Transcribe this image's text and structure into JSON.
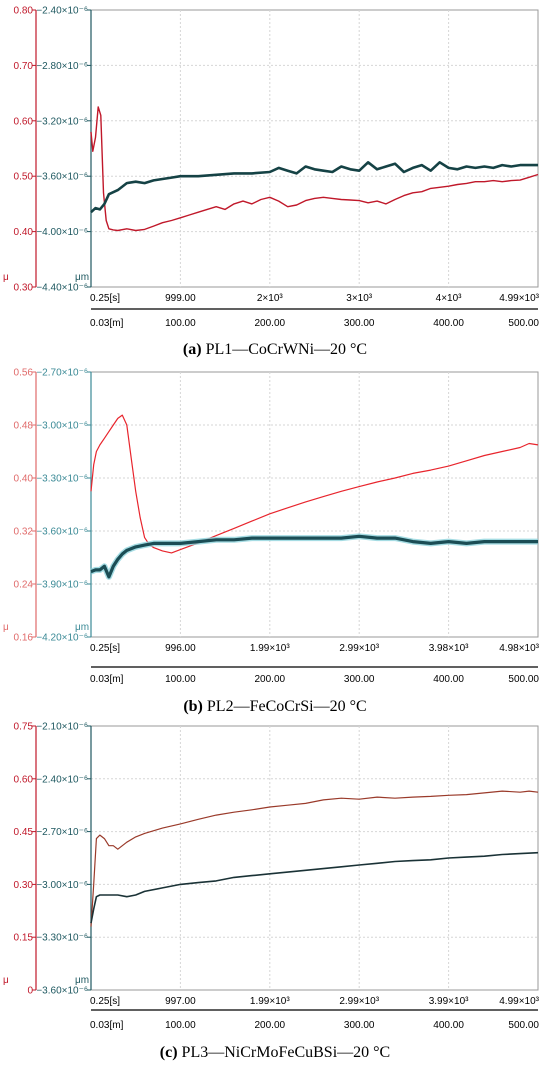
{
  "chart_data": [
    {
      "type": "line",
      "caption_letter": "(a)",
      "caption_rest": " PL1—CoCrWNi—20 °C",
      "mu_axis": {
        "unit": "μ",
        "ticks": [
          "0.80",
          "0.70",
          "0.60",
          "0.50",
          "0.40",
          "0.30"
        ],
        "range": [
          0.3,
          0.8
        ],
        "color": "#c0182a"
      },
      "depth_axis": {
        "unit": "μm",
        "ticks": [
          "−2.40×10⁻⁶",
          "−2.80×10⁻⁶",
          "−3.20×10⁻⁶",
          "−3.60×10⁻⁶",
          "−4.00×10⁻⁶",
          "−4.40×10⁻⁶"
        ],
        "range": [
          -4.4e-06,
          -2.4e-06
        ],
        "color": "#1e5860"
      },
      "time_ticks": [
        "0.25[s]",
        "999.00",
        "2×10³",
        "3×10³",
        "4×10³",
        "4.99×10³"
      ],
      "distance_ticks": [
        "0.03[m]",
        "100.00",
        "200.00",
        "300.00",
        "400.00",
        "500.00"
      ],
      "x_range": [
        0,
        500
      ],
      "series": [
        {
          "color": "#c0182a",
          "width": 1.4,
          "x": [
            0,
            2,
            5,
            8,
            11,
            14,
            17,
            20,
            25,
            30,
            40,
            50,
            60,
            70,
            80,
            90,
            100,
            110,
            120,
            130,
            140,
            150,
            160,
            170,
            180,
            190,
            200,
            210,
            220,
            230,
            240,
            250,
            260,
            270,
            280,
            290,
            300,
            310,
            320,
            330,
            340,
            350,
            360,
            370,
            380,
            390,
            400,
            410,
            420,
            430,
            440,
            450,
            460,
            470,
            480,
            490,
            500
          ],
          "y": [
            0.58,
            0.545,
            0.57,
            0.625,
            0.61,
            0.47,
            0.42,
            0.405,
            0.403,
            0.402,
            0.405,
            0.402,
            0.404,
            0.41,
            0.416,
            0.42,
            0.425,
            0.43,
            0.435,
            0.44,
            0.445,
            0.44,
            0.45,
            0.455,
            0.45,
            0.458,
            0.462,
            0.455,
            0.445,
            0.448,
            0.456,
            0.46,
            0.462,
            0.46,
            0.458,
            0.457,
            0.456,
            0.452,
            0.455,
            0.45,
            0.458,
            0.465,
            0.47,
            0.472,
            0.478,
            0.48,
            0.482,
            0.485,
            0.487,
            0.49,
            0.49,
            0.492,
            0.49,
            0.492,
            0.493,
            0.498,
            0.503
          ]
        },
        {
          "color": "#154245",
          "width": 2.6,
          "x": [
            0,
            5,
            10,
            15,
            20,
            30,
            40,
            50,
            60,
            70,
            80,
            90,
            100,
            120,
            140,
            160,
            180,
            200,
            210,
            220,
            230,
            240,
            250,
            260,
            270,
            280,
            290,
            300,
            310,
            320,
            330,
            340,
            350,
            360,
            370,
            380,
            390,
            400,
            410,
            420,
            430,
            440,
            450,
            460,
            470,
            480,
            490,
            500
          ],
          "y": [
            -3.86e-06,
            -3.83e-06,
            -3.84e-06,
            -3.8e-06,
            -3.73e-06,
            -3.7e-06,
            -3.65e-06,
            -3.64e-06,
            -3.65e-06,
            -3.63e-06,
            -3.62e-06,
            -3.61e-06,
            -3.6e-06,
            -3.6e-06,
            -3.59e-06,
            -3.58e-06,
            -3.58e-06,
            -3.57e-06,
            -3.54e-06,
            -3.56e-06,
            -3.58e-06,
            -3.53e-06,
            -3.55e-06,
            -3.56e-06,
            -3.57e-06,
            -3.53e-06,
            -3.55e-06,
            -3.56e-06,
            -3.5e-06,
            -3.55e-06,
            -3.53e-06,
            -3.51e-06,
            -3.57e-06,
            -3.54e-06,
            -3.52e-06,
            -3.56e-06,
            -3.5e-06,
            -3.54e-06,
            -3.55e-06,
            -3.53e-06,
            -3.54e-06,
            -3.53e-06,
            -3.54e-06,
            -3.52e-06,
            -3.53e-06,
            -3.52e-06,
            -3.52e-06,
            -3.52e-06
          ]
        }
      ]
    },
    {
      "type": "line",
      "caption_letter": "(b)",
      "caption_rest": " PL2—FeCoCrSi—20 °C",
      "mu_axis": {
        "unit": "μ",
        "ticks": [
          "0.56",
          "0.48",
          "0.40",
          "0.32",
          "0.24",
          "0.16"
        ],
        "range": [
          0.16,
          0.56
        ],
        "color": "#e06a6a"
      },
      "depth_axis": {
        "unit": "μm",
        "ticks": [
          "−2.70×10⁻⁶",
          "−3.00×10⁻⁶",
          "−3.30×10⁻⁶",
          "−3.60×10⁻⁶",
          "−3.90×10⁻⁶",
          "−4.20×10⁻⁶"
        ],
        "range": [
          -4.2e-06,
          -2.7e-06
        ],
        "color": "#3b8a96"
      },
      "time_ticks": [
        "0.25[s]",
        "996.00",
        "1.99×10³",
        "2.99×10³",
        "3.98×10³",
        "4.98×10³"
      ],
      "distance_ticks": [
        "0.03[m]",
        "100.00",
        "200.00",
        "300.00",
        "400.00",
        "500.00"
      ],
      "x_range": [
        0,
        500
      ],
      "series": [
        {
          "color": "#e8252d",
          "width": 1.2,
          "x": [
            0,
            3,
            6,
            10,
            15,
            20,
            25,
            30,
            35,
            40,
            45,
            50,
            55,
            60,
            65,
            70,
            80,
            90,
            100,
            120,
            140,
            160,
            180,
            200,
            220,
            240,
            260,
            280,
            300,
            320,
            340,
            360,
            380,
            400,
            420,
            440,
            460,
            480,
            490,
            500
          ],
          "y": [
            0.38,
            0.42,
            0.44,
            0.45,
            0.46,
            0.47,
            0.48,
            0.49,
            0.495,
            0.48,
            0.43,
            0.38,
            0.34,
            0.31,
            0.3,
            0.295,
            0.29,
            0.287,
            0.292,
            0.302,
            0.313,
            0.324,
            0.335,
            0.346,
            0.355,
            0.364,
            0.372,
            0.38,
            0.387,
            0.394,
            0.4,
            0.407,
            0.412,
            0.418,
            0.426,
            0.434,
            0.44,
            0.446,
            0.452,
            0.45
          ]
        },
        {
          "color": "#1b4d55",
          "width": 3.2,
          "x": [
            0,
            5,
            10,
            15,
            20,
            25,
            30,
            35,
            40,
            50,
            60,
            70,
            80,
            90,
            100,
            120,
            140,
            160,
            180,
            200,
            220,
            240,
            260,
            280,
            300,
            320,
            340,
            360,
            380,
            400,
            420,
            440,
            460,
            480,
            500
          ],
          "y": [
            -3.83e-06,
            -3.82e-06,
            -3.82e-06,
            -3.8e-06,
            -3.86e-06,
            -3.8e-06,
            -3.76e-06,
            -3.73e-06,
            -3.71e-06,
            -3.69e-06,
            -3.68e-06,
            -3.67e-06,
            -3.67e-06,
            -3.67e-06,
            -3.67e-06,
            -3.66e-06,
            -3.65e-06,
            -3.65e-06,
            -3.64e-06,
            -3.64e-06,
            -3.64e-06,
            -3.64e-06,
            -3.64e-06,
            -3.64e-06,
            -3.63e-06,
            -3.64e-06,
            -3.64e-06,
            -3.66e-06,
            -3.67e-06,
            -3.66e-06,
            -3.67e-06,
            -3.66e-06,
            -3.66e-06,
            -3.66e-06,
            -3.66e-06
          ]
        }
      ]
    },
    {
      "type": "line",
      "caption_letter": "(c)",
      "caption_rest": " PL3—NiCrMoFeCuBSi—20 °C",
      "mu_axis": {
        "unit": "μ",
        "ticks": [
          "0.75",
          "0.60",
          "0.45",
          "0.30",
          "0.15",
          "0"
        ],
        "range": [
          0,
          0.75
        ],
        "color": "#c0182a"
      },
      "depth_axis": {
        "unit": "μm",
        "ticks": [
          "−2.10×10⁻⁶",
          "−2.40×10⁻⁶",
          "−2.70×10⁻⁶",
          "−3.00×10⁻⁶",
          "−3.30×10⁻⁶",
          "−3.60×10⁻⁶"
        ],
        "range": [
          -3.6e-06,
          -2.1e-06
        ],
        "color": "#1e5860"
      },
      "time_ticks": [
        "0.25[s]",
        "997.00",
        "1.99×10³",
        "2.99×10³",
        "3.99×10³",
        "4.99×10³"
      ],
      "distance_ticks": [
        "0.03[m]",
        "100.00",
        "200.00",
        "300.00",
        "400.00",
        "500.00"
      ],
      "x_range": [
        0,
        500
      ],
      "series": [
        {
          "color": "#9a3a2a",
          "width": 1.2,
          "x": [
            0,
            3,
            6,
            10,
            15,
            20,
            25,
            30,
            40,
            50,
            60,
            80,
            100,
            120,
            140,
            160,
            180,
            200,
            220,
            240,
            260,
            280,
            300,
            320,
            340,
            360,
            380,
            400,
            420,
            440,
            460,
            480,
            490,
            500
          ],
          "y": [
            0.18,
            0.3,
            0.43,
            0.44,
            0.43,
            0.41,
            0.41,
            0.4,
            0.42,
            0.435,
            0.445,
            0.46,
            0.472,
            0.485,
            0.497,
            0.505,
            0.512,
            0.52,
            0.525,
            0.53,
            0.54,
            0.545,
            0.542,
            0.548,
            0.545,
            0.548,
            0.55,
            0.553,
            0.555,
            0.56,
            0.565,
            0.562,
            0.565,
            0.562
          ]
        },
        {
          "color": "#1a3236",
          "width": 1.6,
          "x": [
            0,
            3,
            6,
            10,
            15,
            20,
            30,
            40,
            50,
            60,
            80,
            100,
            120,
            140,
            160,
            180,
            200,
            220,
            240,
            260,
            280,
            300,
            320,
            340,
            360,
            380,
            400,
            420,
            440,
            460,
            480,
            500
          ],
          "y": [
            -3.22e-06,
            -3.14e-06,
            -3.07e-06,
            -3.06e-06,
            -3.06e-06,
            -3.06e-06,
            -3.06e-06,
            -3.07e-06,
            -3.06e-06,
            -3.04e-06,
            -3.02e-06,
            -3e-06,
            -2.99e-06,
            -2.98e-06,
            -2.96e-06,
            -2.95e-06,
            -2.94e-06,
            -2.93e-06,
            -2.92e-06,
            -2.91e-06,
            -2.9e-06,
            -2.89e-06,
            -2.88e-06,
            -2.87e-06,
            -2.865e-06,
            -2.86e-06,
            -2.85e-06,
            -2.845e-06,
            -2.84e-06,
            -2.83e-06,
            -2.825e-06,
            -2.82e-06
          ]
        }
      ]
    }
  ]
}
